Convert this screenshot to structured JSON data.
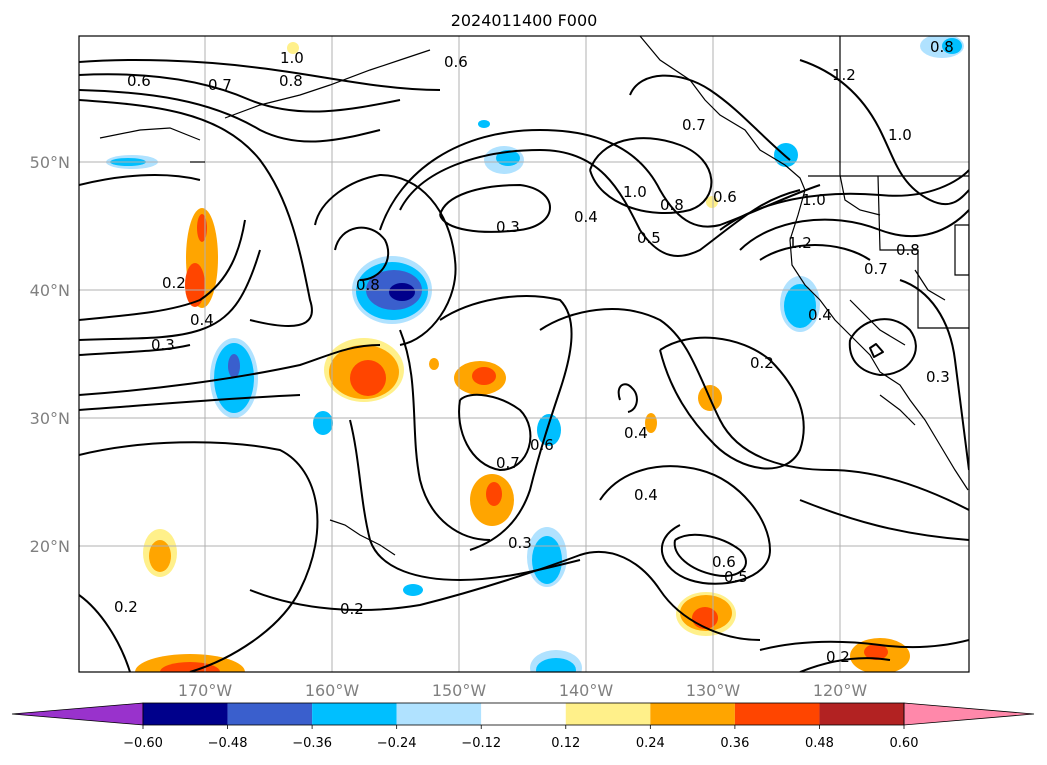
{
  "title": "2024011400 F000",
  "lat_labels": [
    "50°N",
    "40°N",
    "30°N",
    "20°N"
  ],
  "lon_labels": [
    "170°W",
    "160°W",
    "150°W",
    "140°W",
    "130°W",
    "120°W"
  ],
  "colorbar": {
    "colors": [
      "#9932cc",
      "#00008b",
      "#3a5fcd",
      "#00bfff",
      "#b0e2ff",
      "#ffffff",
      "#fff08a",
      "#ffa500",
      "#ff4500",
      "#b22222",
      "#ff88aa"
    ],
    "tick_labels": [
      "−0.60",
      "−0.48",
      "−0.36",
      "−0.24",
      "−0.12",
      "0.12",
      "0.24",
      "0.36",
      "0.48",
      "0.60"
    ]
  },
  "contour_labels": [
    "1.0",
    "0.6",
    "0.6",
    "0.7",
    "0.8",
    "0.8",
    "1.0",
    "0.8",
    "0.6",
    "1.0",
    "0.7",
    "0.3",
    "0.4",
    "0.5",
    "1.2",
    "0.8",
    "0.7",
    "1.2",
    "1.0",
    "0.2",
    "0.4",
    "0.3",
    "0.4",
    "0.2",
    "0.3",
    "0.7",
    "0.6",
    "0.4",
    "0.4",
    "0.6",
    "0.5",
    "0.3",
    "0.2",
    "0.2",
    "0.2",
    "0.8"
  ]
}
